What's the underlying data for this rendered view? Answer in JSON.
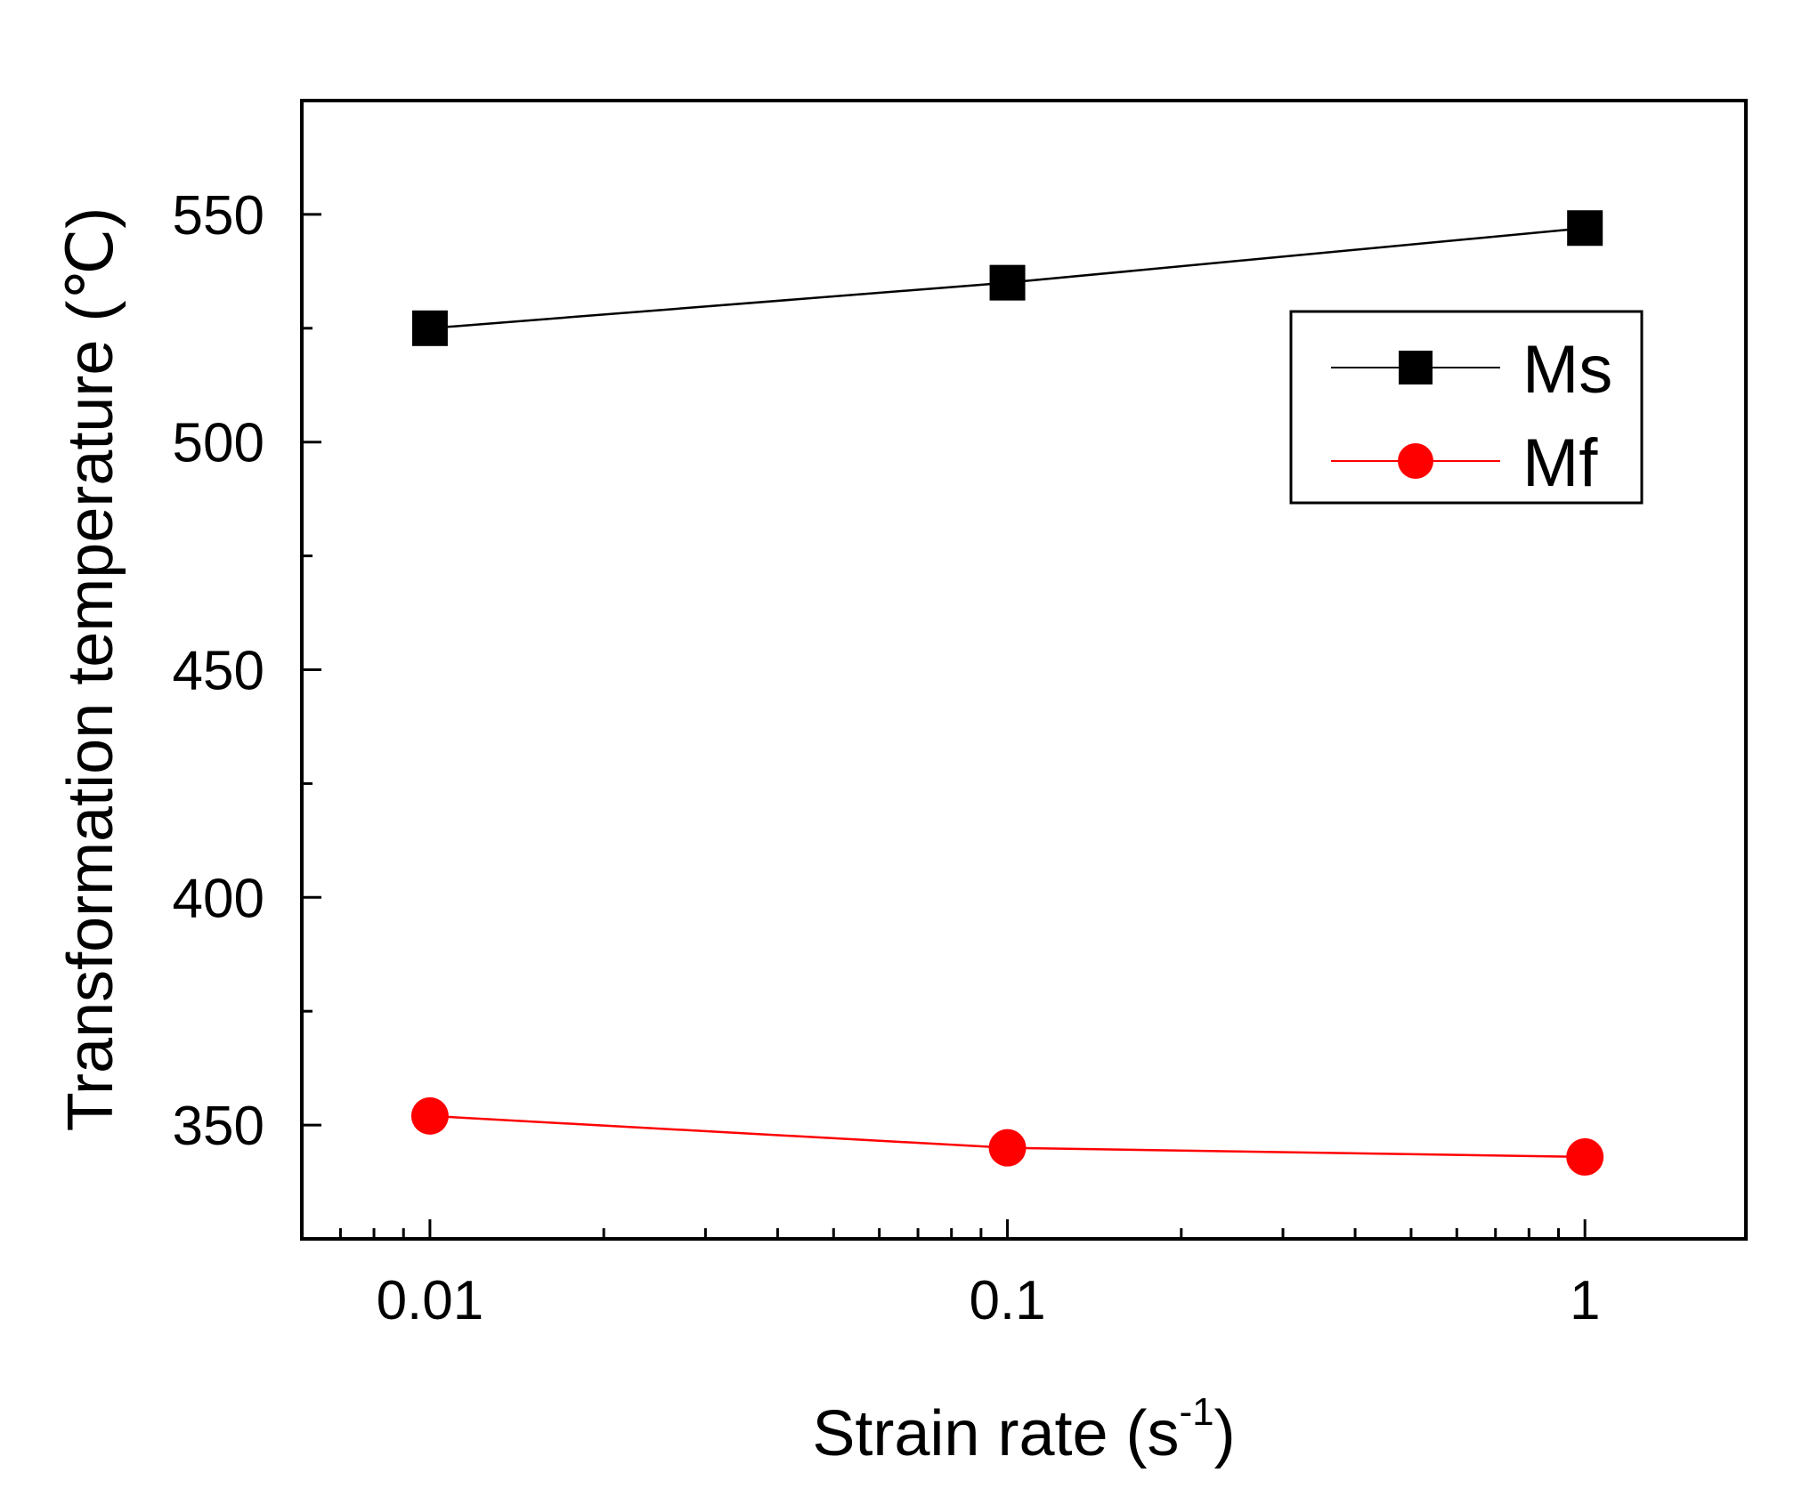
{
  "chart_data": {
    "type": "line",
    "title": "",
    "xlabel": "Strain rate (s",
    "xlabel_sup": "-1",
    "xlabel_close": ")",
    "ylabel": "Transformation temperature (℃)",
    "xscale": "log",
    "xlim": [
      0.006,
      1.9
    ],
    "ylim": [
      325,
      575
    ],
    "x": [
      0.01,
      0.1,
      1
    ],
    "x_tick_labels": [
      "0.01",
      "0.1",
      "1"
    ],
    "y_ticks": [
      350,
      400,
      450,
      500,
      550
    ],
    "y_tick_labels": [
      "350",
      "400",
      "450",
      "500",
      "550"
    ],
    "series": [
      {
        "name": "Ms",
        "values": [
          525,
          535,
          547
        ],
        "color": "#000000",
        "marker": "square"
      },
      {
        "name": "Mf",
        "values": [
          352,
          345,
          343
        ],
        "color": "#ff0000",
        "marker": "circle"
      }
    ],
    "legend_position": "top-right",
    "grid": false
  }
}
